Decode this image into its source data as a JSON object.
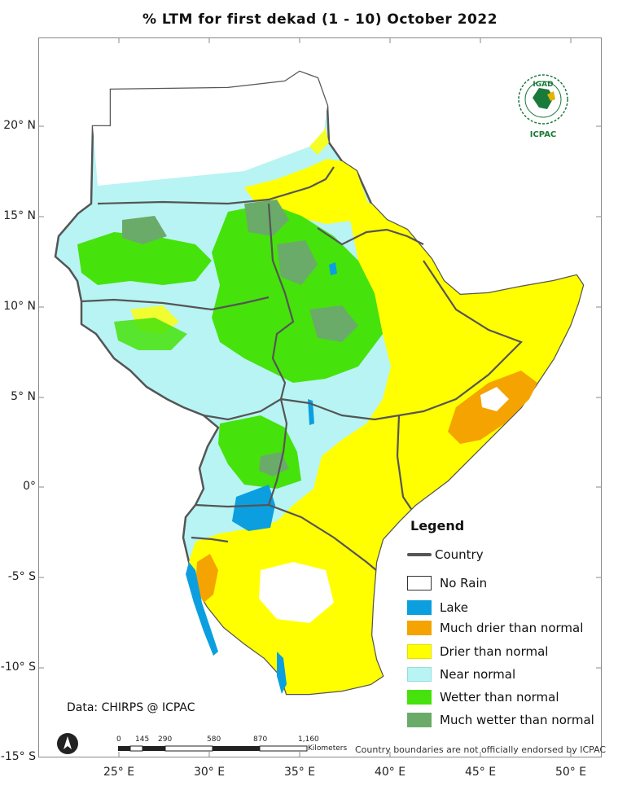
{
  "title": "% LTM  for  first  dekad (1 - 10)  October 2022",
  "axes": {
    "y_ticks": [
      "20° N",
      "15° N",
      "10° N",
      "5° N",
      "0°",
      "-5° S",
      "-10° S",
      "-15° S"
    ],
    "x_ticks": [
      "25° E",
      "30° E",
      "35° E",
      "40° E",
      "45° E",
      "50° E"
    ]
  },
  "legend": {
    "title": "Legend",
    "country_label": "Country",
    "items": [
      {
        "label": "No Rain",
        "color": "#ffffff"
      },
      {
        "label": "Lake",
        "color": "#0b9fe0"
      },
      {
        "label": "Much drier than normal",
        "color": "#f5a300"
      },
      {
        "label": "Drier than normal",
        "color": "#ffff00"
      },
      {
        "label": "Near normal",
        "color": "#b8f4f4"
      },
      {
        "label": "Wetter than normal",
        "color": "#46e20b"
      },
      {
        "label": "Much wetter than normal",
        "color": "#6aab6a"
      }
    ]
  },
  "source": "Data: CHIRPS @ ICPAC",
  "disclaimer": "Country boundaries are not officially endorsed by ICPAC",
  "scale_bar": {
    "labels": [
      "0",
      "145",
      "290",
      "580",
      "870",
      "1,160"
    ],
    "unit": "Kilometers"
  },
  "logo": {
    "top": "IGAD",
    "bottom": "ICPAC"
  },
  "colors": {
    "country_border": "#555555",
    "frame": "#888888"
  }
}
